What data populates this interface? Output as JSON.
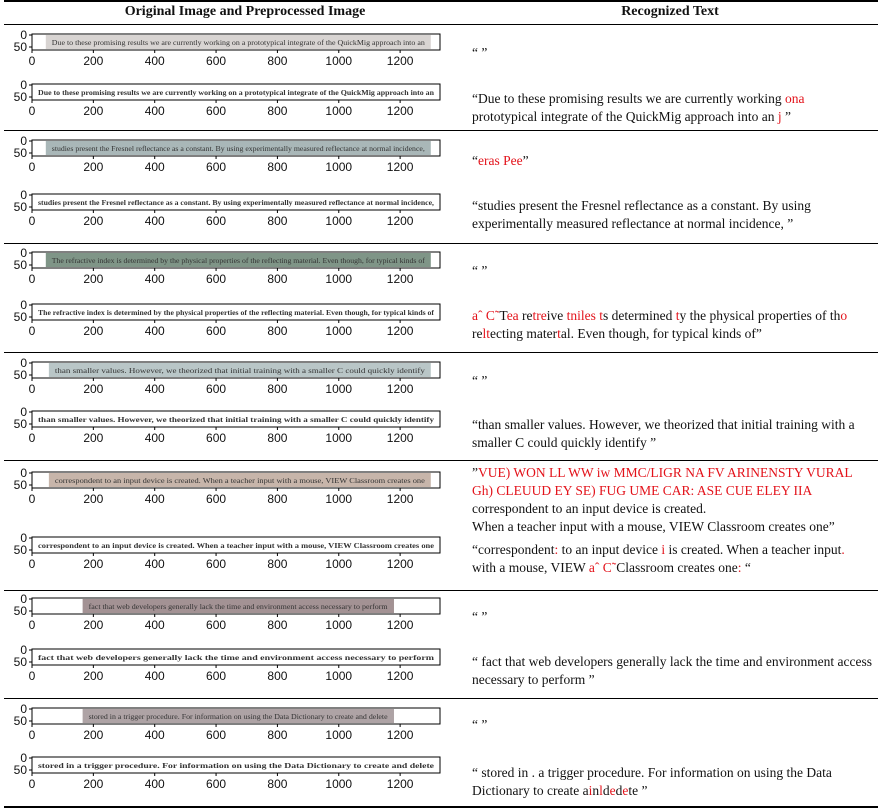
{
  "header": {
    "left": "Original Image and Preprocessed Image",
    "right": "Recognized Text"
  },
  "axis": {
    "x_ticks": [
      "0",
      "200",
      "400",
      "600",
      "800",
      "1000",
      "1200"
    ],
    "y_ticks": [
      "0",
      "50"
    ]
  },
  "colors": {
    "error": "#e3121a"
  },
  "rows": [
    {
      "original_snippet": "Due to these promising results we are currently working on a prototypical integrate of the QuickMig approach into an",
      "preprocessed_snippet": "Due to these promising results we are currently working on a prototypical integrate of the QuickMig approach into an",
      "original_tint": "#d8d4d2",
      "recognized_original": "“ ”",
      "recognized_preprocessed": {
        "p1": "“Due to these promising results we are currently working ",
        "e1": "ona",
        "p2": " prototypical integrate of the QuickMig approach into an ",
        "e2": "j",
        "p3": " ”"
      }
    },
    {
      "original_snippet": "studies present the Fresnel reflectance as a constant. By using experimentally measured reflectance at normal incidence,",
      "preprocessed_snippet": "studies present the Fresnel reflectance as a constant. By using experimentally measured reflectance at normal incidence,",
      "original_tint": "#a9b7b8",
      "recognized_original": {
        "p1": "“",
        "e1": "eras Pee",
        "p2": "”"
      },
      "recognized_preprocessed": "“studies present the Fresnel reflectance as a constant. By using experimentally measured reflectance at normal incidence, ”"
    },
    {
      "original_snippet": "The refractive index is determined by the physical properties of the reflecting material. Even though, for typical kinds of",
      "preprocessed_snippet": "The refractive index is determined by the physical properties of the reflecting material. Even though, for typical kinds of",
      "original_tint": "#7f9587",
      "recognized_original": "“ ”",
      "recognized_preprocessed": {
        "e1": "aˆ C˜",
        "p1": "T",
        "e2": "ea",
        "p2": " re",
        "e3": "tre",
        "p3": "ive ",
        "e4": "tniles t",
        "p4": "s determined ",
        "e5": "t",
        "p5": "y the physical properties of th",
        "e6": "o",
        "p6": " re",
        "e7": "lt",
        "p7": "ecting mater",
        "e8": "t",
        "p8": "al. Even though, for typical kinds of”"
      }
    },
    {
      "original_snippet": "than smaller values.  However, we theorized that initial training with a smaller C could quickly identify",
      "preprocessed_snippet": "than smaller values.  However, we theorized that initial training with a smaller C could quickly identify",
      "original_tint": "#b9c6c7",
      "recognized_original": "“ ”",
      "recognized_preprocessed": "“than smaller values. However, we theorized that initial training with a smaller C could quickly identify ”"
    },
    {
      "original_snippet": "correspondent to an input device is created. When a teacher input with a mouse, VIEW Classroom creates one",
      "preprocessed_snippet": "correspondent to an input device is created. When a teacher input with a mouse, VIEW Classroom creates one",
      "original_tint": "#c7b5aa",
      "recognized_original": {
        "q": "”",
        "e1": "VUE) WON LL WW iw MMC/LIGR NA FV ARINENSTY VURAL Gh) CLEUUD EY SE) FUG UME CAR: ASE CUE ELEY IIA",
        "l1": "correspondent to an input device is created.",
        "l2": "When a teacher input with a mouse, VIEW Classroom creates one”"
      },
      "recognized_preprocessed": {
        "p1": "“correspondent",
        "e1": ":",
        "p2": " to an input device ",
        "e2": "i",
        "p3": " is created. When a teacher input",
        "e3": ".",
        "p4": " with a mouse, VIEW ",
        "e4": "aˆ C˜",
        "p5": "Classroom creates one",
        "e5": ":",
        "p6": " “"
      }
    },
    {
      "original_snippet": "fact that web developers generally lack the time and environment access necessary to perform",
      "preprocessed_snippet": "fact that web developers generally lack the time and environment access necessary to perform",
      "original_tint": "#a39294",
      "recognized_original": "“ ”",
      "recognized_preprocessed": "“ fact that web developers generally lack the time and environment access necessary to perform ”"
    },
    {
      "original_snippet": "stored in a trigger procedure. For information on using the Data Dictionary to create and delete",
      "preprocessed_snippet": "stored in a trigger procedure. For information on using the Data Dictionary to create and delete",
      "original_tint": "#aea3a5",
      "recognized_original": "“ ”",
      "recognized_preprocessed": {
        "p1": "“ stored in . a trigger procedure. For information on using the Data Dictionary to create a",
        "e1": "i",
        "p2": "n",
        "e2": "l",
        "p3": "d",
        "e3": "e",
        "p4": "d",
        "e4": "e",
        "p5": "te ”"
      }
    }
  ]
}
